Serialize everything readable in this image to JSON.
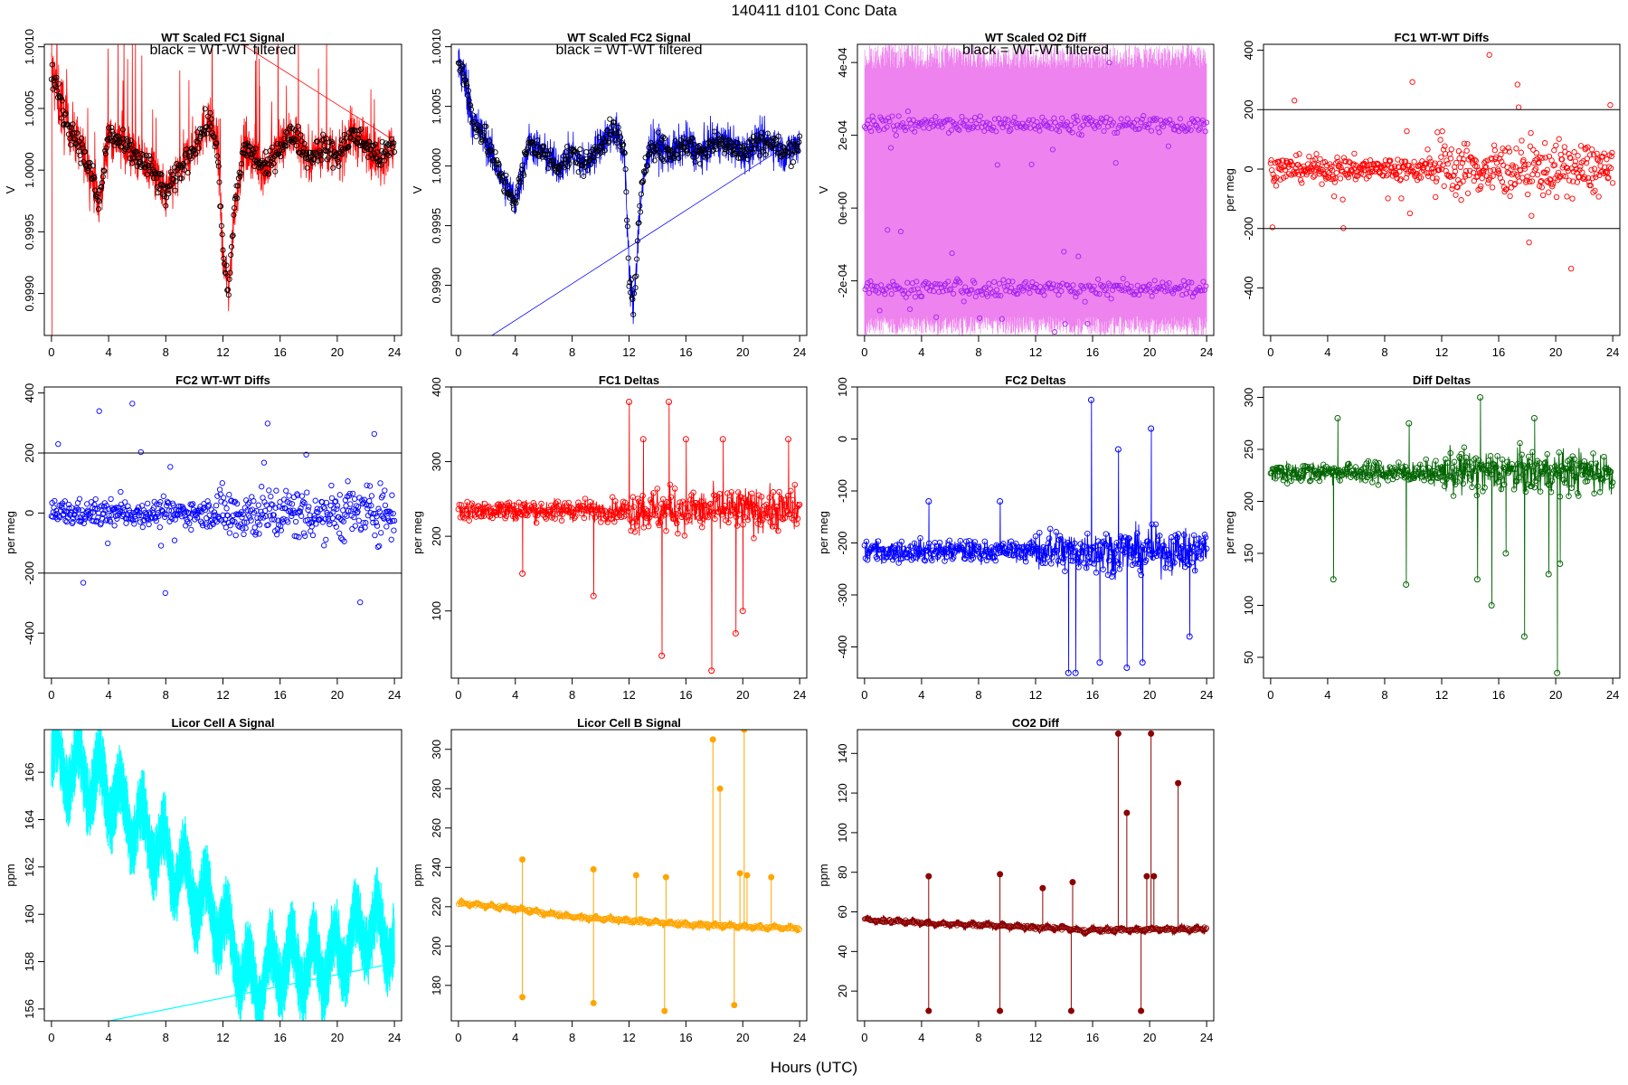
{
  "figure": {
    "title": "140411    d101    Conc Data",
    "xlabel": "Hours (UTC)"
  },
  "chart_data": [
    {
      "id": "fc1-signal",
      "type": "line",
      "title": "WT Scaled FC1 Signal",
      "annotation": "black = WT-WT filtered",
      "ylabel": "V",
      "xlim": [
        -0.5,
        24.5
      ],
      "ylim": [
        0.99866,
        1.00102
      ],
      "xticks": [
        0,
        4,
        8,
        12,
        16,
        20,
        24
      ],
      "yticks": [
        0.999,
        0.9995,
        1.0,
        1.0005,
        1.001
      ],
      "ytick_labels": [
        "0.9990",
        "0.9995",
        "1.0000",
        "1.0005",
        "1.0010"
      ],
      "series": [
        {
          "color": "#ff0000"
        }
      ],
      "baseline": [
        [
          0,
          1.0008
        ],
        [
          0.5,
          1.0006
        ],
        [
          1,
          1.0004
        ],
        [
          2,
          1.0002
        ],
        [
          3,
          0.9999
        ],
        [
          3.3,
          0.9997
        ],
        [
          4,
          1.0003
        ],
        [
          5,
          1.0002
        ],
        [
          6,
          1.0001
        ],
        [
          7,
          1.0
        ],
        [
          8,
          0.9998
        ],
        [
          9,
          1.0
        ],
        [
          10,
          1.0002
        ],
        [
          11,
          1.0004
        ],
        [
          11.6,
          1.0002
        ],
        [
          12,
          0.9993
        ],
        [
          12.4,
          0.999
        ],
        [
          12.8,
          0.9997
        ],
        [
          13.5,
          1.0002
        ],
        [
          15,
          1.0
        ],
        [
          16,
          1.0002
        ],
        [
          17,
          1.0003
        ],
        [
          18,
          1.0001
        ],
        [
          19,
          1.0002
        ],
        [
          20,
          1.0001
        ],
        [
          21,
          1.0003
        ],
        [
          22,
          1.0002
        ],
        [
          23,
          1.0001
        ],
        [
          24,
          1.0002
        ]
      ]
    },
    {
      "id": "fc2-signal",
      "type": "line",
      "title": "WT Scaled FC2 Signal",
      "annotation": "black = WT-WT filtered",
      "ylabel": "V",
      "xlim": [
        -0.5,
        24.5
      ],
      "ylim": [
        0.99858,
        1.00102
      ],
      "xticks": [
        0,
        4,
        8,
        12,
        16,
        20,
        24
      ],
      "yticks": [
        0.999,
        0.9995,
        1.0,
        1.0005,
        1.001
      ],
      "ytick_labels": [
        "0.9990",
        "0.9995",
        "1.0000",
        "1.0005",
        "1.0010"
      ],
      "series": [
        {
          "color": "#0000ff"
        }
      ],
      "baseline": [
        [
          0,
          1.0009
        ],
        [
          0.5,
          1.0007
        ],
        [
          1,
          1.0004
        ],
        [
          2,
          1.0002
        ],
        [
          3,
          0.9999
        ],
        [
          4,
          0.9997
        ],
        [
          5,
          1.0002
        ],
        [
          6,
          1.0001
        ],
        [
          7,
          1.0
        ],
        [
          8,
          1.0001
        ],
        [
          9,
          1.0
        ],
        [
          10,
          1.0002
        ],
        [
          11,
          1.0003
        ],
        [
          11.7,
          1.0001
        ],
        [
          12,
          0.9991
        ],
        [
          12.3,
          0.9988
        ],
        [
          12.8,
          0.9997
        ],
        [
          13.5,
          1.0002
        ],
        [
          15,
          1.0001
        ],
        [
          16,
          1.0002
        ],
        [
          17,
          1.0001
        ],
        [
          18,
          1.0002
        ],
        [
          19,
          1.0002
        ],
        [
          20,
          1.0001
        ],
        [
          21,
          1.0002
        ],
        [
          22,
          1.0002
        ],
        [
          23,
          1.0001
        ],
        [
          24,
          1.0002
        ]
      ]
    },
    {
      "id": "o2-diff",
      "type": "line",
      "title": "WT Scaled O2 Diff",
      "annotation": "black = WT-WT filtered",
      "ylabel": "V",
      "xlim": [
        -0.5,
        24.5
      ],
      "ylim": [
        -0.00035,
        0.00045
      ],
      "xticks": [
        0,
        4,
        8,
        12,
        16,
        20,
        24
      ],
      "yticks": [
        -0.0002,
        0,
        0.0002,
        0.0004
      ],
      "ytick_labels": [
        "-2e-04",
        "0e+00",
        "2e-04",
        "4e-04"
      ],
      "series": [
        {
          "color": "#ee82ee"
        },
        {
          "color": "#a020f0"
        }
      ],
      "levels": [
        0.00023,
        -0.00022
      ]
    },
    {
      "id": "fc1-wt-diffs",
      "type": "scatter",
      "title": "FC1 WT-WT Diffs",
      "ylabel": "per meg",
      "xlim": [
        -0.5,
        24.5
      ],
      "ylim": [
        -560,
        420
      ],
      "xticks": [
        0,
        4,
        8,
        12,
        16,
        20,
        24
      ],
      "yticks": [
        -400,
        -200,
        0,
        200,
        400
      ],
      "ytick_labels": [
        "-400",
        "-200",
        "0",
        "200",
        "400"
      ],
      "hlines": [
        200,
        -200
      ],
      "series": [
        {
          "color": "#ff0000"
        }
      ]
    },
    {
      "id": "fc2-wt-diffs",
      "type": "scatter",
      "title": "FC2 WT-WT Diffs",
      "ylabel": "per meg",
      "xlim": [
        -0.5,
        24.5
      ],
      "ylim": [
        -550,
        420
      ],
      "xticks": [
        0,
        4,
        8,
        12,
        16,
        20,
        24
      ],
      "yticks": [
        -400,
        -200,
        0,
        200,
        400
      ],
      "ytick_labels": [
        "-400",
        "-200",
        "0",
        "200",
        "400"
      ],
      "hlines": [
        200,
        -200
      ],
      "series": [
        {
          "color": "#0000ff"
        }
      ]
    },
    {
      "id": "fc1-deltas",
      "type": "line",
      "title": "FC1 Deltas",
      "ylabel": "per meg",
      "xlim": [
        -0.5,
        24.5
      ],
      "ylim": [
        10,
        400
      ],
      "xticks": [
        0,
        4,
        8,
        12,
        16,
        20,
        24
      ],
      "yticks": [
        100,
        200,
        300,
        400
      ],
      "ytick_labels": [
        "100",
        "200",
        "300",
        "400"
      ],
      "series": [
        {
          "color": "#ff0000"
        }
      ],
      "base": 235,
      "spikes": [
        [
          4.5,
          150
        ],
        [
          9.5,
          120
        ],
        [
          12,
          380
        ],
        [
          13,
          330
        ],
        [
          14.3,
          40
        ],
        [
          14.8,
          380
        ],
        [
          16,
          330
        ],
        [
          17.8,
          20
        ],
        [
          18.6,
          330
        ],
        [
          19.5,
          70
        ],
        [
          20,
          100
        ],
        [
          23.2,
          330
        ]
      ]
    },
    {
      "id": "fc2-deltas",
      "type": "line",
      "title": "FC2 Deltas",
      "ylabel": "per meg",
      "xlim": [
        -0.5,
        24.5
      ],
      "ylim": [
        -460,
        100
      ],
      "xticks": [
        0,
        4,
        8,
        12,
        16,
        20,
        24
      ],
      "yticks": [
        -400,
        -300,
        -200,
        -100,
        0,
        100
      ],
      "ytick_labels": [
        "-400",
        "-300",
        "-200",
        "-100",
        "0",
        "100"
      ],
      "series": [
        {
          "color": "#0000ff"
        }
      ],
      "base": -215,
      "spikes": [
        [
          4.5,
          -120
        ],
        [
          9.5,
          -120
        ],
        [
          14.3,
          -450
        ],
        [
          14.8,
          -450
        ],
        [
          15.9,
          75
        ],
        [
          16.5,
          -430
        ],
        [
          17.8,
          -20
        ],
        [
          18.4,
          -440
        ],
        [
          19.5,
          -430
        ],
        [
          20.1,
          20
        ],
        [
          22.8,
          -380
        ]
      ]
    },
    {
      "id": "diff-deltas",
      "type": "line",
      "title": "Diff Deltas",
      "ylabel": "per meg",
      "xlim": [
        -0.5,
        24.5
      ],
      "ylim": [
        30,
        310
      ],
      "xticks": [
        0,
        4,
        8,
        12,
        16,
        20,
        24
      ],
      "yticks": [
        50,
        100,
        150,
        200,
        250,
        300
      ],
      "ytick_labels": [
        "50",
        "100",
        "150",
        "200",
        "250",
        "300"
      ],
      "series": [
        {
          "color": "#006400"
        }
      ],
      "base": 228,
      "spikes": [
        [
          4.4,
          125
        ],
        [
          4.7,
          280
        ],
        [
          9.5,
          120
        ],
        [
          9.7,
          275
        ],
        [
          14.5,
          125
        ],
        [
          14.7,
          300
        ],
        [
          15.5,
          100
        ],
        [
          16.5,
          150
        ],
        [
          17.8,
          70
        ],
        [
          18.5,
          280
        ],
        [
          19.5,
          130
        ],
        [
          20.1,
          35
        ],
        [
          20.3,
          140
        ]
      ]
    },
    {
      "id": "licor-a",
      "type": "line",
      "title": "Licor Cell A Signal",
      "ylabel": "ppm",
      "xlim": [
        -0.5,
        24.5
      ],
      "ylim": [
        155.5,
        167.8
      ],
      "xticks": [
        0,
        4,
        8,
        12,
        16,
        20,
        24
      ],
      "yticks": [
        156,
        158,
        160,
        162,
        164,
        166
      ],
      "ytick_labels": [
        "156",
        "158",
        "160",
        "162",
        "164",
        "166"
      ],
      "series": [
        {
          "color": "#00ffff"
        }
      ],
      "baseline": [
        [
          0,
          166.5
        ],
        [
          2,
          166
        ],
        [
          4,
          165.2
        ],
        [
          6,
          163.8
        ],
        [
          8,
          162.5
        ],
        [
          10,
          161
        ],
        [
          12,
          159.5
        ],
        [
          14,
          157
        ],
        [
          16,
          158
        ],
        [
          18,
          157.8
        ],
        [
          20,
          158.2
        ],
        [
          22,
          159.5
        ],
        [
          24,
          159
        ]
      ]
    },
    {
      "id": "licor-b",
      "type": "line",
      "title": "Licor Cell B Signal",
      "ylabel": "ppm",
      "xlim": [
        -0.5,
        24.5
      ],
      "ylim": [
        162,
        310
      ],
      "xticks": [
        0,
        4,
        8,
        12,
        16,
        20,
        24
      ],
      "yticks": [
        180,
        200,
        220,
        240,
        260,
        280,
        300
      ],
      "ytick_labels": [
        "180",
        "200",
        "220",
        "240",
        "260",
        "280",
        "300"
      ],
      "series": [
        {
          "color": "#ffa500"
        }
      ],
      "baseline": [
        [
          0,
          222
        ],
        [
          4,
          219
        ],
        [
          8,
          215
        ],
        [
          12,
          213
        ],
        [
          16,
          211
        ],
        [
          20,
          210
        ],
        [
          24,
          209
        ]
      ],
      "spikes": [
        [
          4.5,
          244
        ],
        [
          4.5,
          174
        ],
        [
          9.5,
          239
        ],
        [
          9.5,
          171
        ],
        [
          12.5,
          236
        ],
        [
          14.5,
          167
        ],
        [
          14.6,
          235
        ],
        [
          17.9,
          305
        ],
        [
          18.4,
          280
        ],
        [
          19.4,
          170
        ],
        [
          19.8,
          237
        ],
        [
          20.1,
          310
        ],
        [
          20.3,
          236
        ],
        [
          22,
          235
        ]
      ]
    },
    {
      "id": "co2-diff",
      "type": "line",
      "title": "CO2 Diff",
      "ylabel": "ppm",
      "xlim": [
        -0.5,
        24.5
      ],
      "ylim": [
        5,
        152
      ],
      "xticks": [
        0,
        4,
        8,
        12,
        16,
        20,
        24
      ],
      "yticks": [
        20,
        40,
        60,
        80,
        100,
        120,
        140
      ],
      "ytick_labels": [
        "20",
        "40",
        "60",
        "80",
        "100",
        "120",
        "140"
      ],
      "series": [
        {
          "color": "#8b0000"
        }
      ],
      "baseline": [
        [
          0,
          56
        ],
        [
          3,
          55
        ],
        [
          5,
          54
        ],
        [
          8,
          53.5
        ],
        [
          10,
          53
        ],
        [
          12,
          52
        ],
        [
          14,
          52
        ],
        [
          15.5,
          50
        ],
        [
          16,
          51
        ],
        [
          20,
          51
        ],
        [
          24,
          51.5
        ]
      ],
      "spikes": [
        [
          4.5,
          78
        ],
        [
          4.5,
          10
        ],
        [
          9.5,
          79
        ],
        [
          9.5,
          10
        ],
        [
          12.5,
          72
        ],
        [
          14.5,
          10
        ],
        [
          14.6,
          75
        ],
        [
          17.8,
          150
        ],
        [
          18.4,
          110
        ],
        [
          19.4,
          10
        ],
        [
          19.8,
          78
        ],
        [
          20.1,
          150
        ],
        [
          20.3,
          78
        ],
        [
          22,
          125
        ]
      ]
    }
  ]
}
